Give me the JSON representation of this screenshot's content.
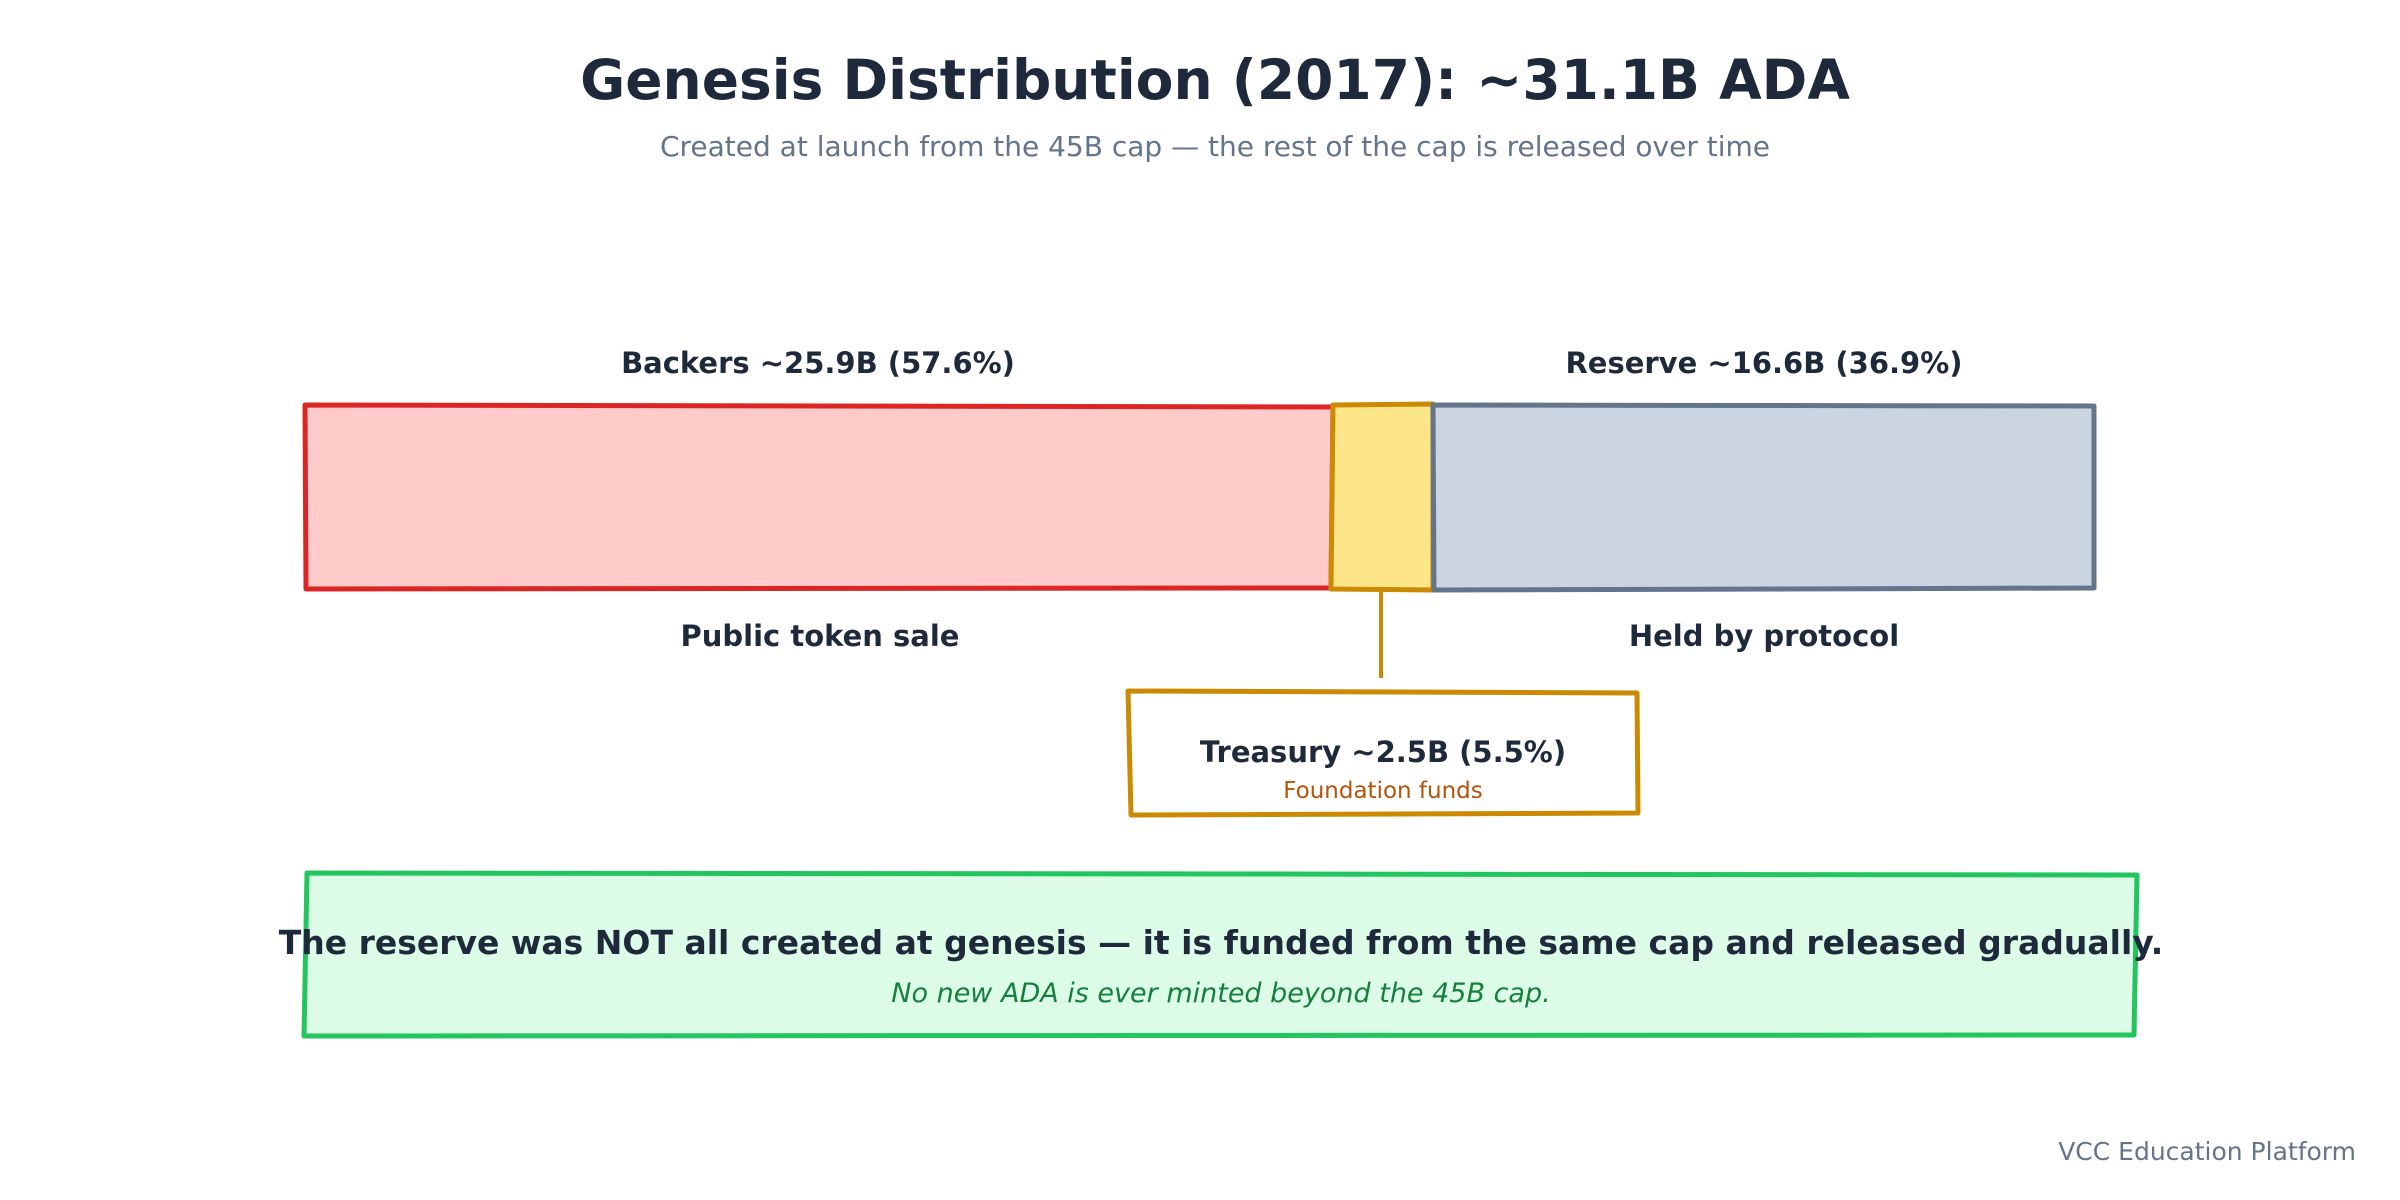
{
  "title": "Genesis Distribution (2017): ~31.1B ADA",
  "subtitle": "Created at launch from the 45B cap — the rest of the cap is released over time",
  "segments": {
    "backers": {
      "label": "Backers ~25.9B (57.6%)",
      "caption": "Public token sale",
      "value_b": 25.9,
      "percent": 57.6,
      "fill": "#fecaca",
      "stroke": "#dc2626"
    },
    "treasury": {
      "value_b": 2.5,
      "percent": 5.5,
      "fill": "#fde68a",
      "stroke": "#ca8a04"
    },
    "reserve": {
      "label": "Reserve ~16.6B (36.9%)",
      "caption": "Held by protocol",
      "value_b": 16.6,
      "percent": 36.9,
      "fill": "#cbd5e1",
      "stroke": "#64748b"
    }
  },
  "treasury_callout": {
    "title": "Treasury ~2.5B (5.5%)",
    "subtitle": "Foundation funds",
    "text_color": "#b45309"
  },
  "note": {
    "main": "The reserve was NOT all created at genesis — it is funded from the same cap and released gradually.",
    "sub": "No new ADA is ever minted beyond the 45B cap.",
    "fill": "#dcfce7",
    "stroke": "#22c55e"
  },
  "footer": "VCC Education Platform"
}
